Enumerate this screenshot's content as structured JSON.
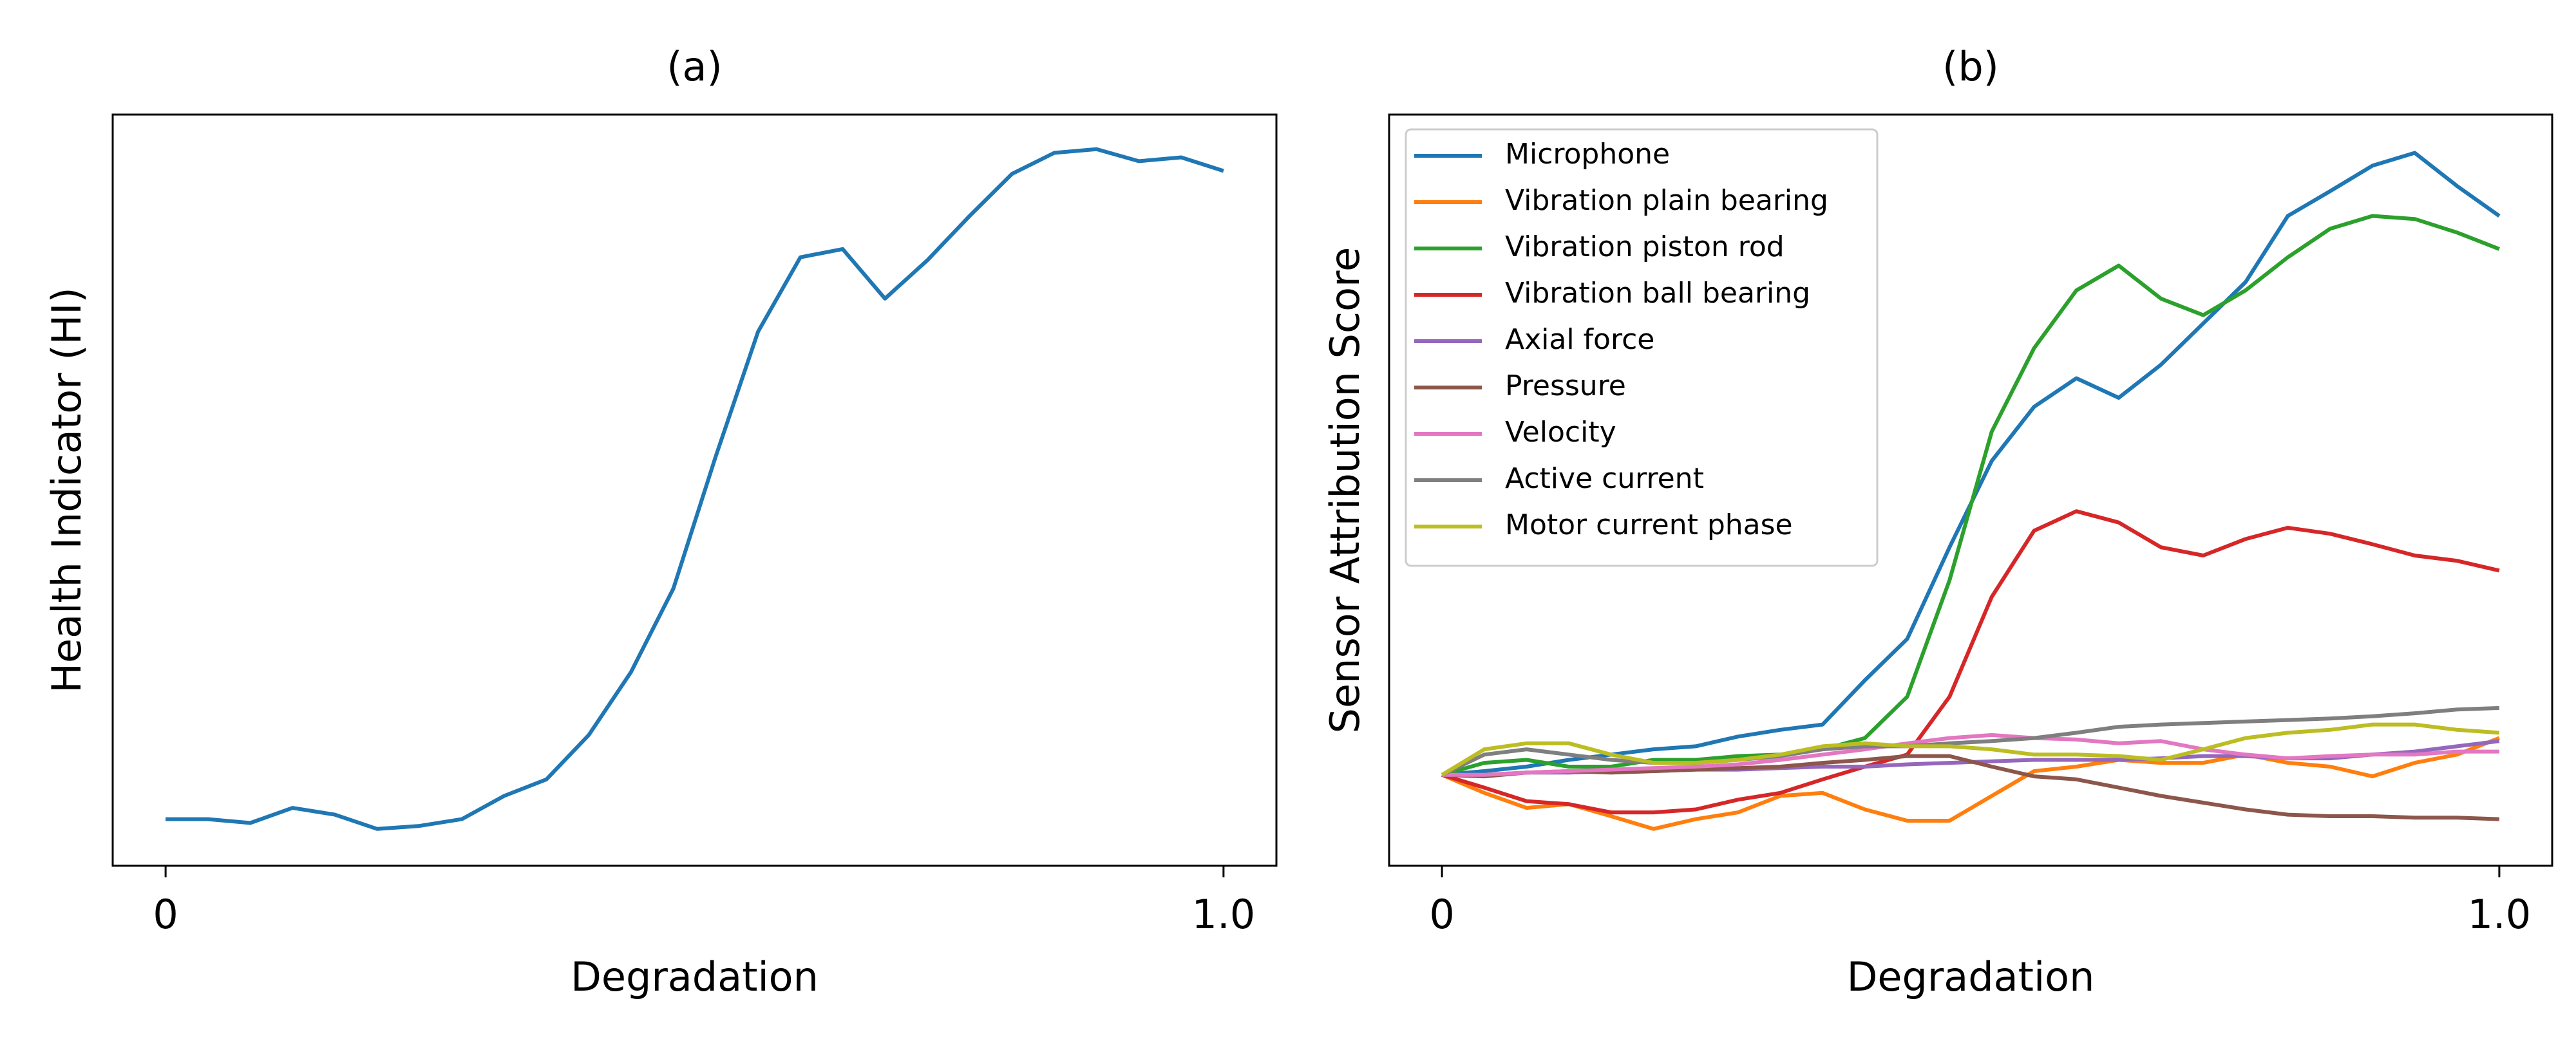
{
  "chart_data": [
    {
      "type": "line",
      "title": "(a)",
      "x_label": "Degradation",
      "y_label": "Health Indicator (HI)",
      "x": [
        0,
        0.04,
        0.08,
        0.12,
        0.16,
        0.2,
        0.24,
        0.28,
        0.32,
        0.36,
        0.4,
        0.44,
        0.48,
        0.52,
        0.56,
        0.6,
        0.64,
        0.68,
        0.72,
        0.76,
        0.8,
        0.84,
        0.88,
        0.92,
        0.96,
        1.0
      ],
      "xlim": [
        -0.05,
        1.05
      ],
      "ylim": [
        0,
        1
      ],
      "xticks": [
        0,
        {
          "value": 1,
          "label": "1.0"
        }
      ],
      "series": [
        {
          "color": "#1f77b4",
          "values": [
            0.062,
            0.062,
            0.057,
            0.077,
            0.068,
            0.049,
            0.053,
            0.062,
            0.093,
            0.115,
            0.174,
            0.258,
            0.369,
            0.545,
            0.711,
            0.81,
            0.821,
            0.755,
            0.806,
            0.865,
            0.921,
            0.949,
            0.954,
            0.938,
            0.943,
            0.925
          ]
        }
      ]
    },
    {
      "type": "line",
      "title": "(b)",
      "x_label": "Degradation",
      "y_label": "Sensor Attribution Score",
      "legend": "upper left",
      "x": [
        0,
        0.04,
        0.08,
        0.12,
        0.16,
        0.2,
        0.24,
        0.28,
        0.32,
        0.36,
        0.4,
        0.44,
        0.48,
        0.52,
        0.56,
        0.6,
        0.64,
        0.68,
        0.72,
        0.76,
        0.8,
        0.84,
        0.88,
        0.92,
        0.96,
        1.0
      ],
      "xlim": [
        -0.05,
        1.05
      ],
      "ylim": [
        0,
        1
      ],
      "xticks": [
        0,
        {
          "value": 1,
          "label": "1.0"
        }
      ],
      "series": [
        {
          "name": "Microphone",
          "color": "#1f77b4",
          "values": [
            0.121,
            0.126,
            0.132,
            0.141,
            0.148,
            0.155,
            0.159,
            0.172,
            0.181,
            0.188,
            0.247,
            0.302,
            0.424,
            0.539,
            0.611,
            0.649,
            0.623,
            0.667,
            0.722,
            0.777,
            0.865,
            0.898,
            0.932,
            0.949,
            0.905,
            0.865
          ]
        },
        {
          "name": "Vibration plain bearing",
          "color": "#ff7f0e",
          "values": [
            0.121,
            0.097,
            0.077,
            0.082,
            0.066,
            0.049,
            0.062,
            0.071,
            0.093,
            0.097,
            0.075,
            0.06,
            0.06,
            0.093,
            0.126,
            0.132,
            0.141,
            0.137,
            0.137,
            0.148,
            0.137,
            0.132,
            0.119,
            0.137,
            0.148,
            0.17
          ]
        },
        {
          "name": "Vibration piston rod",
          "color": "#2ca02c",
          "values": [
            0.121,
            0.137,
            0.141,
            0.132,
            0.132,
            0.141,
            0.141,
            0.146,
            0.148,
            0.155,
            0.17,
            0.225,
            0.38,
            0.578,
            0.689,
            0.766,
            0.799,
            0.755,
            0.733,
            0.766,
            0.81,
            0.848,
            0.865,
            0.861,
            0.843,
            0.821
          ]
        },
        {
          "name": "Vibration ball bearing",
          "color": "#d62728",
          "values": [
            0.121,
            0.104,
            0.086,
            0.082,
            0.071,
            0.071,
            0.075,
            0.088,
            0.097,
            0.115,
            0.132,
            0.148,
            0.225,
            0.358,
            0.446,
            0.472,
            0.457,
            0.424,
            0.413,
            0.435,
            0.45,
            0.442,
            0.428,
            0.413,
            0.406,
            0.393
          ]
        },
        {
          "name": "Axial force",
          "color": "#9467bd",
          "values": [
            0.121,
            0.121,
            0.124,
            0.124,
            0.126,
            0.126,
            0.128,
            0.128,
            0.13,
            0.132,
            0.132,
            0.135,
            0.137,
            0.139,
            0.141,
            0.141,
            0.141,
            0.143,
            0.146,
            0.146,
            0.143,
            0.143,
            0.148,
            0.152,
            0.159,
            0.166
          ]
        },
        {
          "name": "Pressure",
          "color": "#8c564b",
          "values": [
            0.121,
            0.119,
            0.124,
            0.126,
            0.124,
            0.126,
            0.128,
            0.13,
            0.132,
            0.137,
            0.141,
            0.146,
            0.146,
            0.132,
            0.119,
            0.115,
            0.104,
            0.093,
            0.084,
            0.075,
            0.068,
            0.066,
            0.066,
            0.064,
            0.064,
            0.062
          ]
        },
        {
          "name": "Velocity",
          "color": "#e377c2",
          "values": [
            0.121,
            0.121,
            0.124,
            0.126,
            0.128,
            0.13,
            0.132,
            0.135,
            0.141,
            0.148,
            0.155,
            0.163,
            0.17,
            0.174,
            0.17,
            0.168,
            0.163,
            0.166,
            0.155,
            0.148,
            0.143,
            0.146,
            0.148,
            0.148,
            0.152,
            0.152
          ]
        },
        {
          "name": "Active current",
          "color": "#7f7f7f",
          "values": [
            0.121,
            0.148,
            0.155,
            0.148,
            0.141,
            0.137,
            0.137,
            0.141,
            0.146,
            0.155,
            0.159,
            0.159,
            0.163,
            0.166,
            0.17,
            0.177,
            0.185,
            0.188,
            0.19,
            0.192,
            0.194,
            0.196,
            0.199,
            0.203,
            0.208,
            0.21
          ]
        },
        {
          "name": "Motor current phase",
          "color": "#bcbd22",
          "values": [
            0.121,
            0.155,
            0.163,
            0.163,
            0.148,
            0.137,
            0.137,
            0.141,
            0.148,
            0.159,
            0.163,
            0.159,
            0.159,
            0.155,
            0.148,
            0.148,
            0.146,
            0.141,
            0.155,
            0.17,
            0.177,
            0.181,
            0.188,
            0.188,
            0.181,
            0.177
          ]
        }
      ]
    }
  ]
}
